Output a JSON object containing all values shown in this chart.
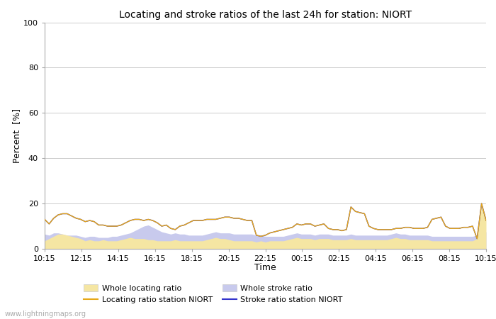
{
  "title": "Locating and stroke ratios of the last 24h for station: NIORT",
  "xlabel": "Time",
  "ylabel": "Percent  [%]",
  "ylim": [
    0,
    100
  ],
  "yticks": [
    0,
    20,
    40,
    60,
    80,
    100
  ],
  "time_labels": [
    "10:15",
    "12:15",
    "14:15",
    "16:15",
    "18:15",
    "20:15",
    "22:15",
    "00:15",
    "02:15",
    "04:15",
    "06:15",
    "08:15",
    "10:15"
  ],
  "watermark": "www.lightningmaps.org",
  "colors": {
    "whole_locating_fill": "#f5e6a3",
    "whole_stroke_fill": "#c8caed",
    "locating_line": "#e6a817",
    "stroke_line": "#3333cc"
  },
  "whole_locating": [
    3.5,
    4.5,
    5.5,
    6.5,
    6.5,
    6.0,
    5.5,
    5.0,
    4.5,
    3.5,
    4.0,
    3.5,
    3.5,
    4.0,
    3.5,
    3.5,
    3.5,
    4.0,
    4.5,
    5.0,
    4.5,
    4.5,
    4.5,
    4.0,
    4.0,
    3.5,
    3.5,
    3.5,
    3.5,
    4.0,
    3.5,
    3.5,
    3.5,
    3.5,
    3.5,
    3.5,
    4.0,
    4.5,
    5.0,
    4.5,
    4.5,
    4.0,
    3.5,
    3.5,
    3.5,
    3.5,
    3.5,
    3.0,
    3.5,
    3.0,
    3.5,
    3.5,
    3.5,
    3.5,
    4.0,
    4.5,
    5.0,
    4.5,
    4.5,
    4.5,
    4.0,
    4.5,
    4.5,
    4.5,
    4.0,
    4.0,
    4.0,
    4.0,
    4.5,
    4.0,
    4.0,
    4.0,
    4.0,
    4.0,
    4.0,
    4.0,
    4.0,
    4.5,
    5.0,
    4.5,
    4.5,
    4.0,
    4.0,
    4.0,
    4.0,
    4.0,
    3.5,
    3.5,
    3.5,
    3.5,
    3.5,
    3.5,
    3.5,
    3.5,
    3.5,
    3.5,
    4.5,
    19.0,
    13.0
  ],
  "whole_stroke": [
    6.5,
    6.0,
    7.0,
    7.0,
    6.5,
    6.0,
    6.0,
    6.0,
    5.5,
    5.0,
    5.5,
    5.5,
    5.0,
    5.0,
    5.0,
    5.5,
    5.5,
    6.0,
    6.5,
    7.0,
    8.0,
    9.0,
    10.0,
    10.5,
    9.5,
    8.5,
    7.5,
    7.0,
    6.5,
    7.0,
    6.5,
    6.5,
    6.0,
    6.0,
    6.0,
    6.0,
    6.5,
    7.0,
    7.5,
    7.0,
    7.0,
    7.0,
    6.5,
    6.5,
    6.5,
    6.5,
    6.5,
    6.0,
    6.0,
    5.5,
    5.5,
    5.5,
    5.5,
    5.5,
    6.0,
    6.5,
    7.0,
    6.5,
    6.5,
    6.5,
    6.0,
    6.5,
    6.5,
    6.5,
    6.0,
    6.0,
    6.0,
    6.0,
    6.5,
    6.0,
    6.0,
    6.0,
    6.0,
    6.0,
    6.0,
    6.0,
    6.0,
    6.5,
    7.0,
    6.5,
    6.5,
    6.0,
    6.0,
    6.0,
    6.0,
    6.0,
    5.5,
    5.5,
    5.5,
    5.5,
    5.5,
    5.5,
    5.5,
    5.5,
    5.5,
    5.5,
    6.0,
    7.0,
    7.5
  ],
  "locating_station": [
    13.0,
    11.0,
    13.5,
    15.0,
    15.5,
    15.5,
    14.5,
    13.5,
    13.0,
    12.0,
    12.5,
    12.0,
    10.5,
    10.5,
    10.0,
    10.0,
    10.0,
    10.5,
    11.5,
    12.5,
    13.0,
    13.0,
    12.5,
    13.0,
    12.5,
    11.5,
    10.0,
    10.5,
    9.0,
    8.5,
    10.0,
    10.5,
    11.5,
    12.5,
    12.5,
    12.5,
    13.0,
    13.0,
    13.0,
    13.5,
    14.0,
    14.0,
    13.5,
    13.5,
    13.0,
    12.5,
    12.5,
    6.0,
    5.5,
    6.0,
    7.0,
    7.5,
    8.0,
    8.5,
    9.0,
    9.5,
    11.0,
    10.5,
    11.0,
    11.0,
    10.0,
    10.5,
    11.0,
    9.0,
    8.5,
    8.5,
    8.0,
    8.5,
    18.5,
    16.5,
    16.0,
    15.5,
    10.0,
    9.0,
    8.5,
    8.5,
    8.5,
    8.5,
    9.0,
    9.0,
    9.5,
    9.5,
    9.0,
    9.0,
    9.0,
    9.5,
    13.0,
    13.5,
    14.0,
    10.0,
    9.0,
    9.0,
    9.0,
    9.5,
    9.5,
    10.0,
    4.5,
    20.0,
    12.5
  ],
  "stroke_station": [
    13.0,
    11.0,
    13.5,
    15.0,
    15.5,
    15.5,
    14.5,
    13.5,
    13.0,
    12.0,
    12.5,
    12.0,
    10.5,
    10.5,
    10.0,
    10.0,
    10.0,
    10.5,
    11.5,
    12.5,
    13.0,
    13.0,
    12.5,
    13.0,
    12.5,
    11.5,
    10.0,
    10.5,
    9.0,
    8.5,
    10.0,
    10.5,
    11.5,
    12.5,
    12.5,
    12.5,
    13.0,
    13.0,
    13.0,
    13.5,
    14.0,
    14.0,
    13.5,
    13.5,
    13.0,
    12.5,
    12.5,
    6.0,
    5.5,
    6.0,
    7.0,
    7.5,
    8.0,
    8.5,
    9.0,
    9.5,
    11.0,
    10.5,
    11.0,
    11.0,
    10.0,
    10.5,
    11.0,
    9.0,
    8.5,
    8.5,
    8.0,
    8.5,
    18.5,
    16.5,
    16.0,
    15.5,
    10.0,
    9.0,
    8.5,
    8.5,
    8.5,
    8.5,
    9.0,
    9.0,
    9.5,
    9.5,
    9.0,
    9.0,
    9.0,
    9.5,
    13.0,
    13.5,
    14.0,
    10.0,
    9.0,
    9.0,
    9.0,
    9.5,
    9.5,
    10.0,
    4.5,
    20.0,
    12.5
  ]
}
